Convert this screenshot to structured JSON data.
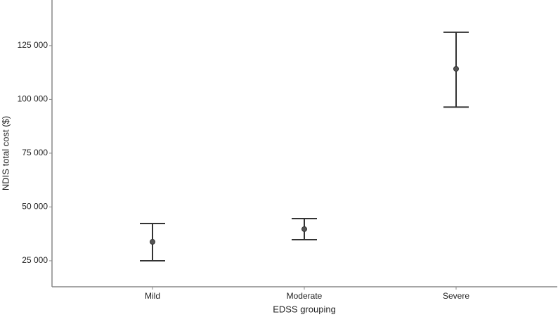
{
  "chart_data": {
    "type": "errorbar",
    "x_label": "EDSS grouping",
    "y_label": "NDIS total cost ($)",
    "categories": [
      "Mild",
      "Moderate",
      "Severe"
    ],
    "values": [
      33800,
      39700,
      114200
    ],
    "lower": [
      25000,
      34800,
      96400
    ],
    "upper": [
      42300,
      44600,
      131200
    ],
    "color": "#333333",
    "marker_color": "#555555",
    "ylim": [
      12900,
      146200
    ],
    "yticks": [
      {
        "value": 25000,
        "label": "25 000"
      },
      {
        "value": 50000,
        "label": "50 000"
      },
      {
        "value": 75000,
        "label": "75 000"
      },
      {
        "value": 100000,
        "label": "100 000"
      },
      {
        "value": 125000,
        "label": "125 000"
      }
    ],
    "grid": false
  }
}
